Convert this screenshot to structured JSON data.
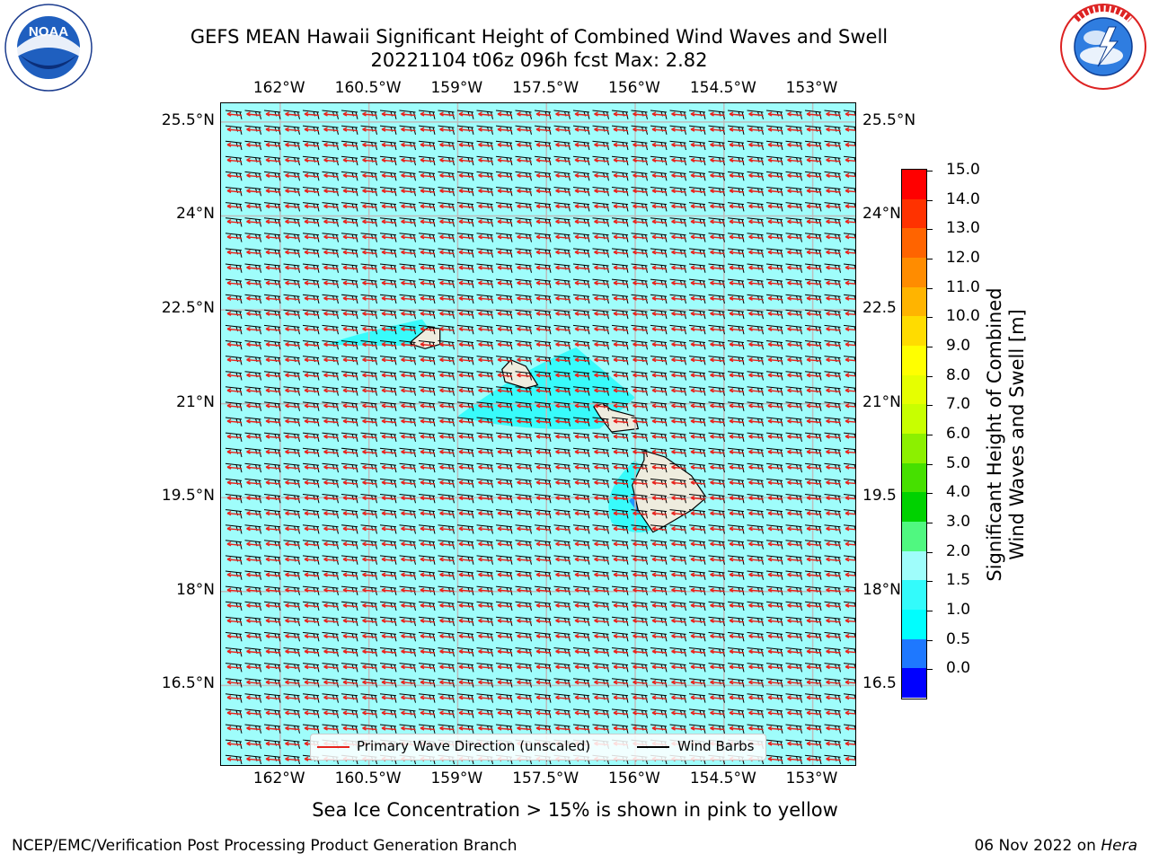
{
  "title": {
    "line1": "GEFS MEAN Hawaii Significant Height of Combined Wind Waves and Swell",
    "line2": "20221104 t06z 096h fcst   Max: 2.82"
  },
  "logos": {
    "left": {
      "text": "NOAA",
      "ring_text": "NATIONAL OCEANIC AND ATMOSPHERIC ADMINISTRATION · U.S. DEPARTMENT OF COMMERCE"
    },
    "right": {
      "ring_text": "NATIONAL WEATHER SERVICE"
    }
  },
  "map": {
    "lon_labels": [
      "162°W",
      "160.5°W",
      "159°W",
      "157.5°W",
      "156°W",
      "154.5°W",
      "153°W"
    ],
    "lat_labels": [
      "25.5°N",
      "24°N",
      "22.5°N",
      "21°N",
      "19.5°N",
      "18°N",
      "16.5°N"
    ],
    "lat_labels_right": [
      "25.5°N",
      "24°N",
      "22.5",
      "21°N",
      "19.5",
      "18°N",
      "16.5"
    ],
    "colors": {
      "ocean": "#9ffdfb",
      "land": "#eeecde",
      "higher_wave": "#33fbfb",
      "high_wave": "#1f8fff",
      "arrow": "#e8231c",
      "barb": "#000000",
      "grid": "#bdbdbd"
    }
  },
  "colorbar": {
    "label_line1": "Significant Height of Combined",
    "label_line2": "Wind Waves and Swell [m]",
    "ticks": [
      "15.0",
      "14.0",
      "13.0",
      "12.0",
      "11.0",
      "10.0",
      "9.0",
      "8.0",
      "7.0",
      "6.0",
      "5.0",
      "4.0",
      "3.0",
      "2.0",
      "1.5",
      "1.0",
      "0.5",
      "0.0"
    ],
    "segment_colors": [
      "#ff0000",
      "#ff3200",
      "#ff6400",
      "#ff8c00",
      "#ffb400",
      "#ffdc00",
      "#ffff00",
      "#e6ff00",
      "#c8ff00",
      "#8cf000",
      "#46e000",
      "#00d200",
      "#50f880",
      "#9ffdfb",
      "#33fbfb",
      "#00fefe",
      "#1e78ff",
      "#0000ff"
    ]
  },
  "legend": {
    "wave_direction": "Primary Wave Direction (unscaled)",
    "wind_barbs": "Wind Barbs"
  },
  "notes": {
    "sea_ice": "Sea Ice Concentration > 15% is shown in pink to yellow",
    "footer_left": "NCEP/EMC/Verification Post Processing Product Generation Branch",
    "footer_date": "06 Nov 2022 on ",
    "footer_machine": "Hera"
  }
}
